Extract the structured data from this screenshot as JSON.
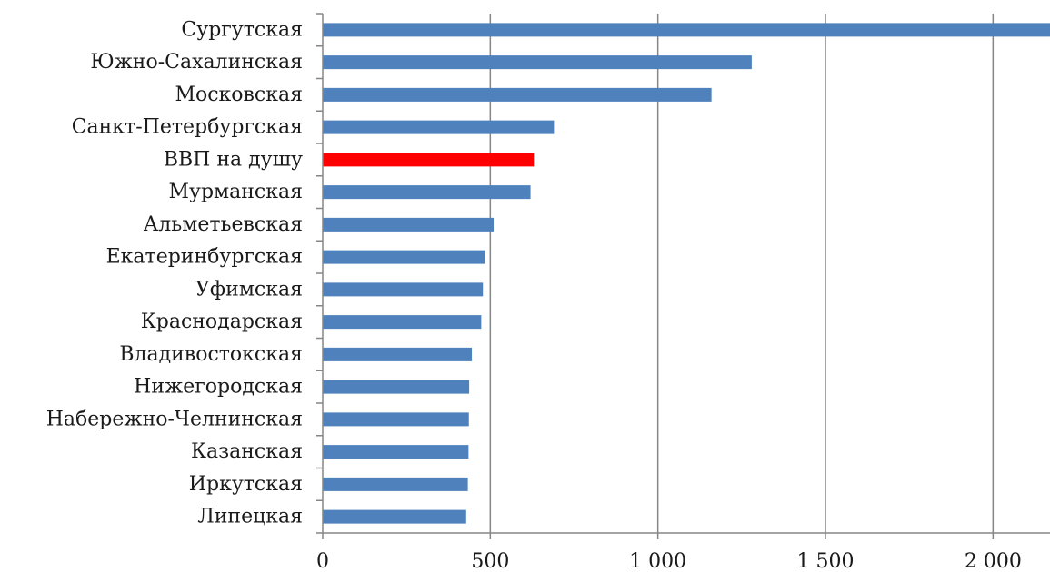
{
  "chart_data": {
    "type": "bar",
    "orientation": "horizontal",
    "title": "",
    "xlabel": "",
    "ylabel": "",
    "xlim": [
      0,
      2170
    ],
    "grid": true,
    "legend": "none",
    "categories": [
      "Сургутская",
      "Южно-Сахалинская",
      "Московская",
      "Санкт-Петербургская",
      "ВВП на душу",
      "Мурманская",
      "Альметьевская",
      "Екатеринбургская",
      "Уфимская",
      "Краснодарская",
      "Владивостокская",
      "Нижегородская",
      "Набережно-Челнинская",
      "Казанская",
      "Иркутская",
      "Липецкая"
    ],
    "values": [
      2170,
      1280,
      1160,
      690,
      630,
      620,
      510,
      485,
      478,
      473,
      445,
      437,
      436,
      435,
      433,
      428
    ],
    "x_ticks": [
      0,
      500,
      1000,
      1500,
      2000
    ],
    "x_tick_labels": [
      "0",
      "500",
      "1 000",
      "1 500",
      "2 000"
    ],
    "colors": {
      "bar": "#4f81bd",
      "highlight": "#ff0000",
      "grid": "#868686",
      "axis": "#868686"
    },
    "highlight_index": 4
  }
}
